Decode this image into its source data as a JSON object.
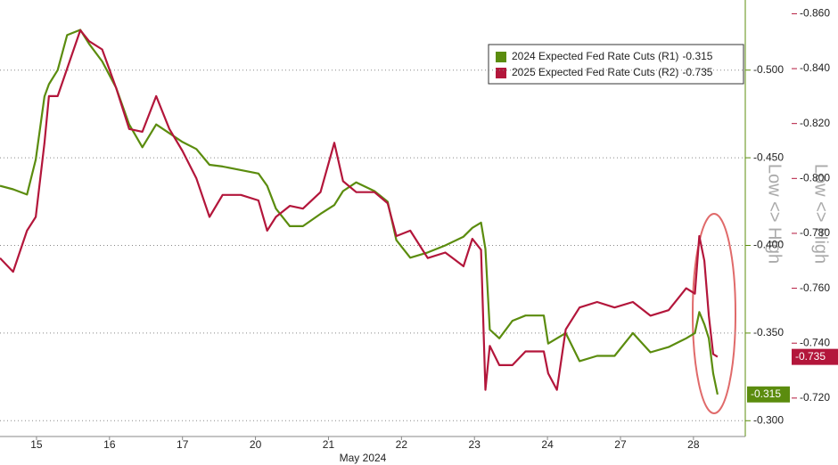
{
  "chart_data": {
    "type": "line",
    "x_label": "May 2024",
    "y_label": "Low <> High",
    "y2_label": "Low <> High",
    "x": [
      -0.5,
      -0.32,
      -0.13,
      -0.01,
      0.11,
      0.17,
      0.29,
      0.42,
      0.6,
      0.72,
      0.9,
      1.09,
      1.27,
      1.45,
      1.64,
      1.82,
      2.0,
      2.19,
      2.37,
      2.55,
      2.8,
      3.04,
      3.16,
      3.28,
      3.47,
      3.65,
      3.89,
      4.08,
      4.2,
      4.38,
      4.63,
      4.81,
      4.93,
      5.12,
      5.36,
      5.6,
      5.85,
      5.97,
      6.09,
      6.15,
      6.21,
      6.34,
      6.52,
      6.7,
      6.95,
      7.01,
      7.13,
      7.25,
      7.44,
      7.68,
      7.92,
      8.17,
      8.41,
      8.66,
      8.9,
      9.02,
      9.08,
      9.15,
      9.21,
      9.27,
      9.33
    ],
    "xlim": [
      -0.5,
      9.71
    ],
    "xticks": [
      {
        "value": 0,
        "label": "15"
      },
      {
        "value": 1,
        "label": "16"
      },
      {
        "value": 2,
        "label": "17"
      },
      {
        "value": 3,
        "label": "20"
      },
      {
        "value": 4,
        "label": "21"
      },
      {
        "value": 5,
        "label": "22"
      },
      {
        "value": 6,
        "label": "23"
      },
      {
        "value": 7,
        "label": "24"
      },
      {
        "value": 8,
        "label": "27"
      },
      {
        "value": 9,
        "label": "28"
      }
    ],
    "ylim": [
      -0.291,
      -0.54
    ],
    "yticks": [
      {
        "value": -0.3,
        "label": "-0.300"
      },
      {
        "value": -0.35,
        "label": "-0.350"
      },
      {
        "value": -0.4,
        "label": "-0.400"
      },
      {
        "value": -0.45,
        "label": "-0.450"
      },
      {
        "value": -0.5,
        "label": "-0.500"
      }
    ],
    "y2lim": [
      -0.706,
      -0.865
    ],
    "y2ticks": [
      {
        "value": -0.72,
        "label": "-0.720"
      },
      {
        "value": -0.74,
        "label": "-0.740"
      },
      {
        "value": -0.76,
        "label": "-0.760"
      },
      {
        "value": -0.78,
        "label": "-0.780"
      },
      {
        "value": -0.8,
        "label": "-0.800"
      },
      {
        "value": -0.82,
        "label": "-0.820"
      },
      {
        "value": -0.84,
        "label": "-0.840"
      },
      {
        "value": -0.86,
        "label": "-0.860"
      }
    ],
    "grid": true,
    "legend": "upper right",
    "series": [
      {
        "name": "2024 Expected Fed Rate Cuts (R1)",
        "color": "#5b8c0e",
        "axis": "y",
        "values": [
          -0.434,
          -0.432,
          -0.429,
          -0.449,
          -0.485,
          -0.492,
          -0.5,
          -0.52,
          -0.523,
          -0.515,
          -0.505,
          -0.49,
          -0.469,
          -0.456,
          -0.469,
          -0.464,
          -0.459,
          -0.455,
          -0.446,
          -0.445,
          -0.443,
          -0.441,
          -0.434,
          -0.421,
          -0.411,
          -0.411,
          -0.418,
          -0.423,
          -0.431,
          -0.436,
          -0.431,
          -0.425,
          -0.403,
          -0.393,
          -0.396,
          -0.4,
          -0.405,
          -0.41,
          -0.413,
          -0.398,
          -0.352,
          -0.347,
          -0.357,
          -0.36,
          -0.36,
          -0.344,
          -0.347,
          -0.35,
          -0.334,
          -0.337,
          -0.337,
          -0.35,
          -0.339,
          -0.342,
          -0.347,
          -0.35,
          -0.362,
          -0.355,
          -0.347,
          -0.327,
          -0.315
        ]
      },
      {
        "name": "2025 Expected Fed Rate Cuts (R2)",
        "color": "#b3163b",
        "axis": "y2",
        "values": [
          -0.771,
          -0.766,
          -0.781,
          -0.786,
          -0.813,
          -0.83,
          -0.83,
          -0.84,
          -0.854,
          -0.85,
          -0.847,
          -0.833,
          -0.818,
          -0.817,
          -0.83,
          -0.818,
          -0.81,
          -0.8,
          -0.786,
          -0.794,
          -0.794,
          -0.792,
          -0.781,
          -0.786,
          -0.79,
          -0.789,
          -0.795,
          -0.813,
          -0.799,
          -0.795,
          -0.795,
          -0.791,
          -0.779,
          -0.781,
          -0.771,
          -0.773,
          -0.768,
          -0.778,
          -0.774,
          -0.723,
          -0.739,
          -0.732,
          -0.732,
          -0.737,
          -0.737,
          -0.729,
          -0.723,
          -0.745,
          -0.753,
          -0.755,
          -0.753,
          -0.755,
          -0.75,
          -0.752,
          -0.76,
          -0.758,
          -0.779,
          -0.77,
          -0.75,
          -0.736,
          -0.735
        ]
      }
    ]
  }
}
